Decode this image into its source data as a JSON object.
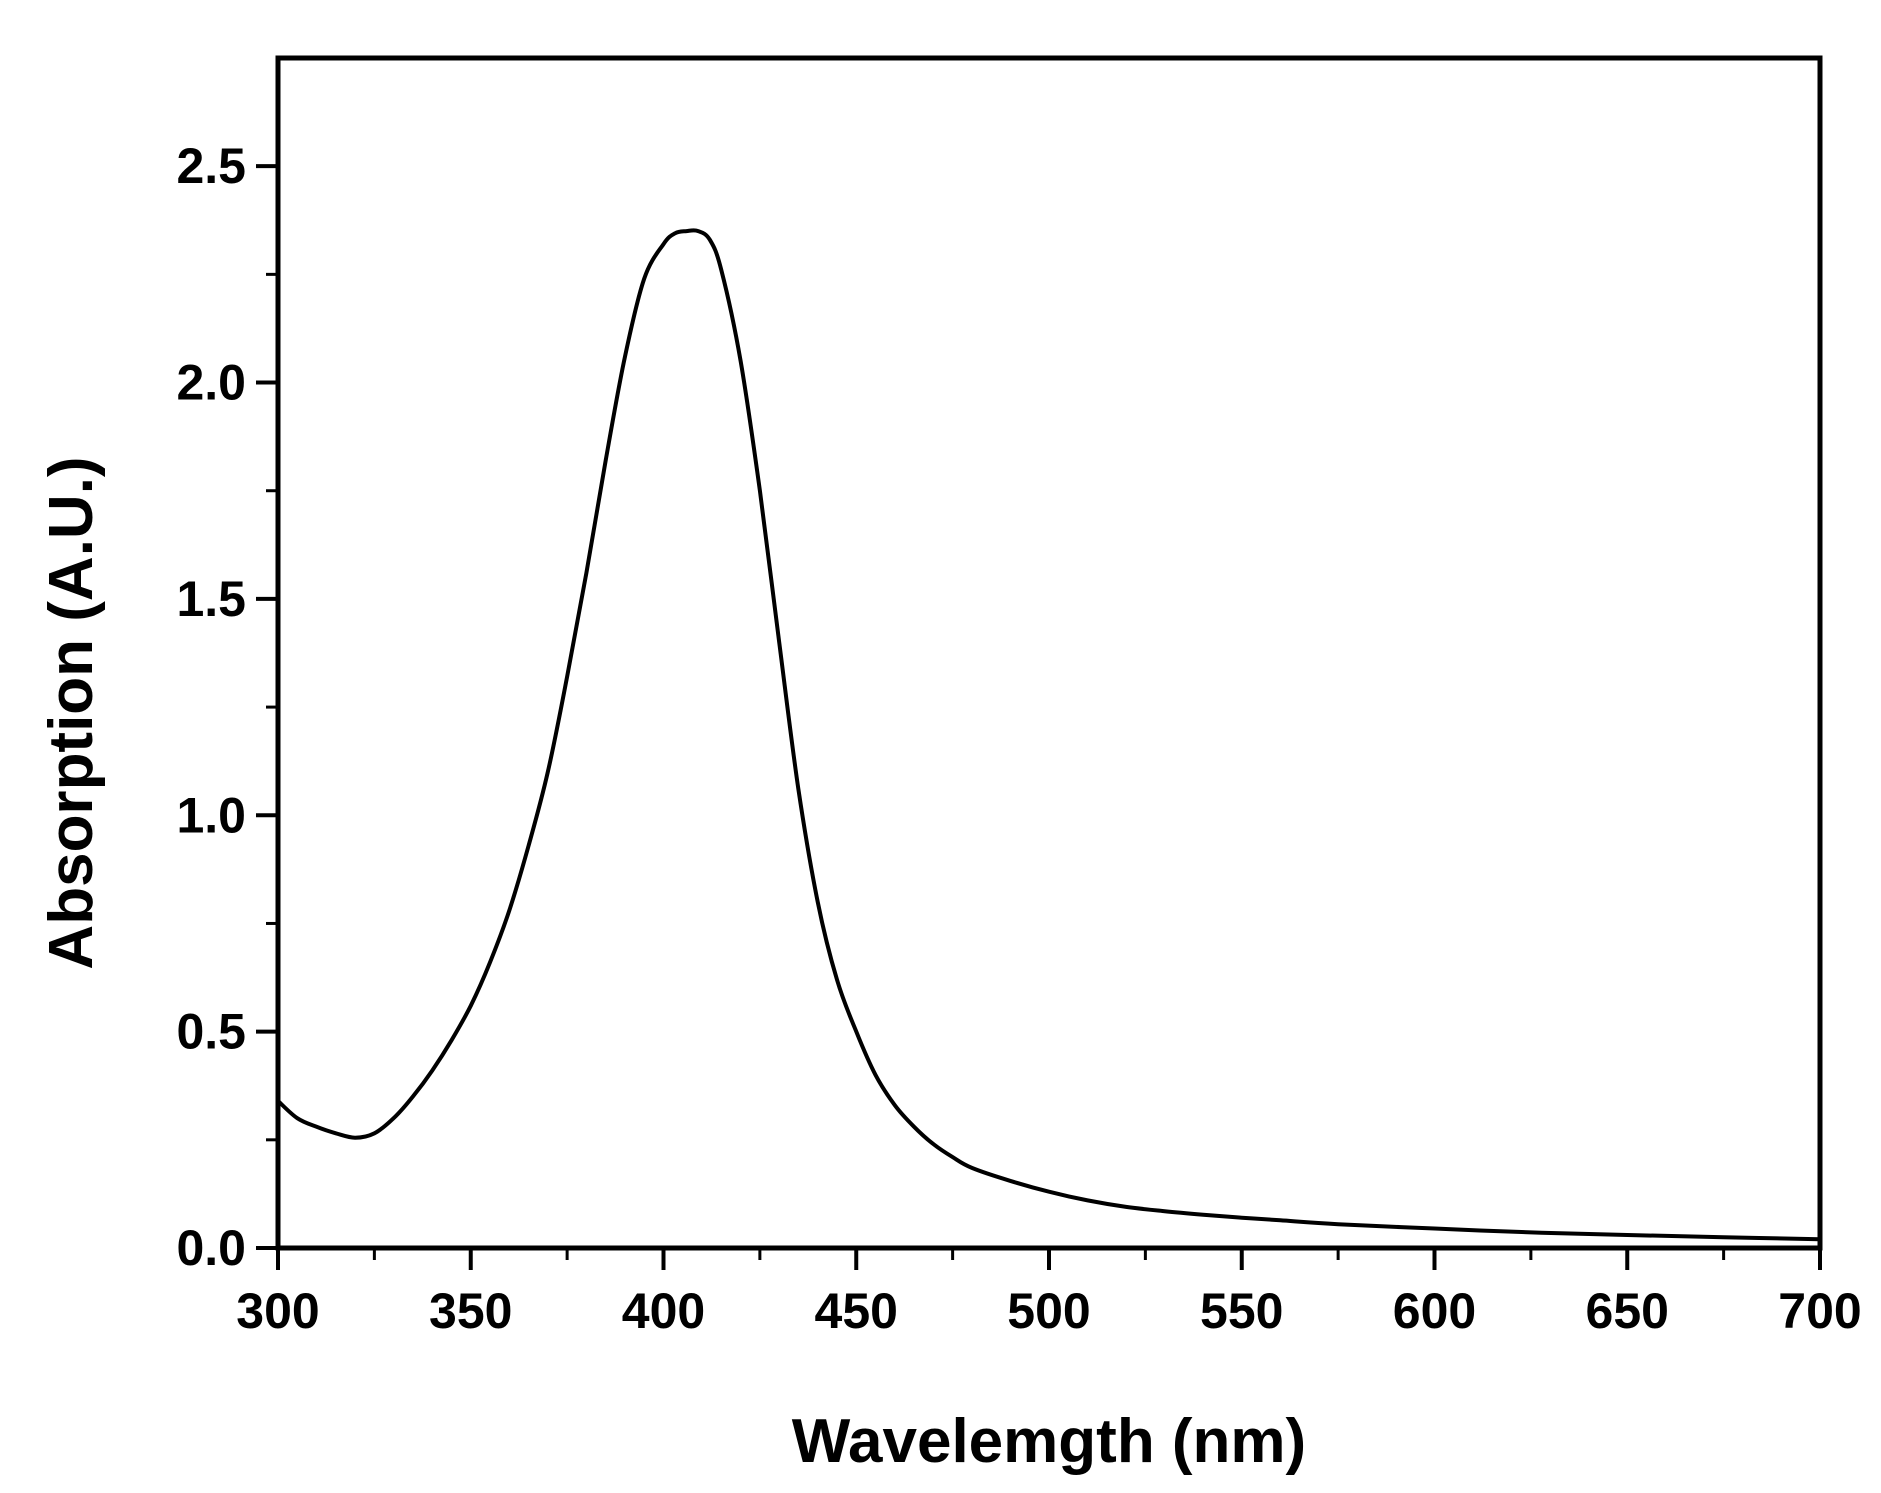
{
  "chart_data": {
    "type": "line",
    "xlabel": "Wavelemgth (nm)",
    "ylabel": "Absorption (A.U.)",
    "xlim": [
      300,
      700
    ],
    "ylim": [
      0,
      2.75
    ],
    "xticks": [
      300,
      350,
      400,
      450,
      500,
      550,
      600,
      650,
      700
    ],
    "xtick_labels": [
      "300",
      "350",
      "400",
      "450",
      "500",
      "550",
      "600",
      "650",
      "700"
    ],
    "yticks": [
      0.0,
      0.5,
      1.0,
      1.5,
      2.0,
      2.5
    ],
    "ytick_labels": [
      "0.0",
      "0.5",
      "1.0",
      "1.5",
      "2.0",
      "2.5"
    ],
    "grid": false,
    "line_color": "#000000",
    "series": [
      {
        "x": [
          300,
          305,
          310,
          315,
          320,
          325,
          330,
          335,
          340,
          345,
          350,
          355,
          360,
          365,
          370,
          375,
          380,
          385,
          390,
          395,
          400,
          403,
          406,
          409,
          412,
          415,
          420,
          425,
          430,
          435,
          440,
          445,
          450,
          455,
          460,
          465,
          470,
          475,
          480,
          490,
          500,
          510,
          520,
          530,
          540,
          550,
          560,
          575,
          600,
          625,
          650,
          675,
          700
        ],
        "y": [
          0.34,
          0.3,
          0.28,
          0.265,
          0.255,
          0.265,
          0.3,
          0.35,
          0.41,
          0.48,
          0.56,
          0.66,
          0.78,
          0.93,
          1.1,
          1.32,
          1.56,
          1.82,
          2.06,
          2.24,
          2.32,
          2.345,
          2.35,
          2.35,
          2.33,
          2.26,
          2.05,
          1.75,
          1.4,
          1.06,
          0.8,
          0.62,
          0.5,
          0.4,
          0.33,
          0.28,
          0.24,
          0.21,
          0.185,
          0.155,
          0.13,
          0.11,
          0.095,
          0.085,
          0.077,
          0.07,
          0.064,
          0.055,
          0.045,
          0.036,
          0.03,
          0.025,
          0.02
        ]
      }
    ]
  }
}
